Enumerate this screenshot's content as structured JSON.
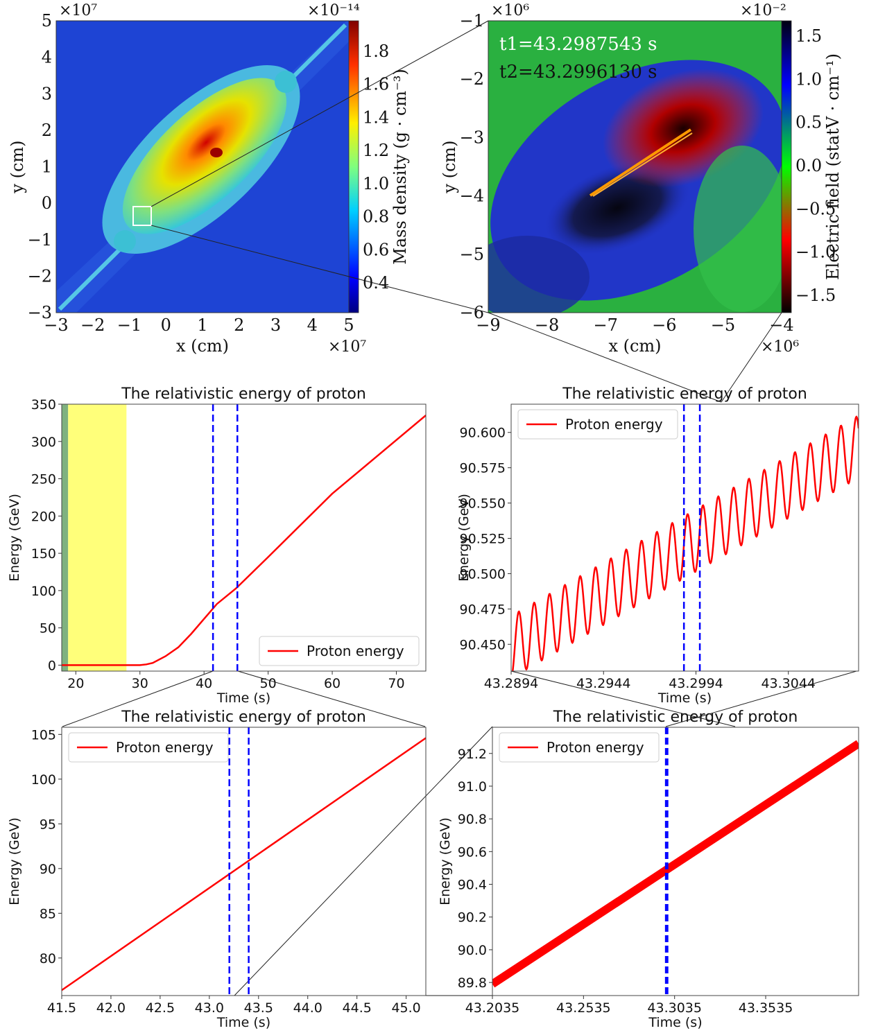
{
  "top_left": {
    "xlabel": "x  (cm)",
    "ylabel": "y  (cm)",
    "x_exp": "×10⁷",
    "y_exp": "×10⁷",
    "xticks": [
      "−3",
      "−2",
      "−1",
      "0",
      "1",
      "2",
      "3",
      "4",
      "5"
    ],
    "yticks": [
      "5",
      "4",
      "3",
      "2",
      "1",
      "0",
      "−1",
      "−2",
      "−3"
    ],
    "cbar_label": "Mass density (g · cm⁻³)",
    "cbar_exp": "×10⁻¹⁴",
    "cbar_ticks": [
      "1.8",
      "1.6",
      "1.4",
      "1.2",
      "1.0",
      "0.8",
      "0.6",
      "0.4"
    ]
  },
  "top_right": {
    "xlabel": "x  (cm)",
    "ylabel": "y  (cm)",
    "x_exp": "×10⁶",
    "y_exp": "×10⁶",
    "xticks": [
      "−9",
      "−8",
      "−7",
      "−6",
      "−5",
      "−4"
    ],
    "yticks": [
      "−1",
      "−2",
      "−3",
      "−4",
      "−5",
      "−6"
    ],
    "cbar_label": "Electric field (statV · cm⁻¹)",
    "cbar_exp": "×10⁻²",
    "cbar_ticks": [
      "1.5",
      "1.0",
      "0.5",
      "0.0",
      "−0.5",
      "−1.0",
      "−1.5"
    ],
    "t1": "t1=43.2987543 s",
    "t2": "t2=43.2996130 s"
  },
  "chart_data": [
    {
      "type": "line",
      "title": "The relativistic energy of proton",
      "xlabel": "Time (s)",
      "ylabel": "Energy (GeV)",
      "xlim": [
        17.8,
        74.6
      ],
      "ylim": [
        -8,
        350
      ],
      "xticks": [
        20,
        30,
        40,
        50,
        60,
        70
      ],
      "yticks": [
        0,
        50,
        100,
        150,
        200,
        250,
        300,
        350
      ],
      "legend": "lower right",
      "series": [
        {
          "name": "Proton energy",
          "x": [
            17.8,
            30,
            31,
            32,
            34,
            36,
            38,
            40,
            42,
            45,
            50,
            60,
            74.6
          ],
          "y": [
            0,
            0,
            1,
            3,
            12,
            24,
            42,
            62,
            82,
            103,
            145,
            230,
            335
          ]
        }
      ],
      "vlines": [
        41.4,
        45.2
      ],
      "shaded": [
        {
          "from": 17.8,
          "to": 18.8,
          "color": "#7fb17f"
        },
        {
          "from": 18.8,
          "to": 27.9,
          "color": "#ffff7a"
        }
      ]
    },
    {
      "type": "line",
      "title": "The relativistic energy of proton",
      "xlabel": "Time (s)",
      "ylabel": "Energy (GeV)",
      "xlim": [
        43.2894,
        43.3082
      ],
      "ylim": [
        90.431,
        90.62
      ],
      "xticks": [
        "43.2894",
        "43.2944",
        "43.2994",
        "43.3044"
      ],
      "yticks": [
        "90.450",
        "90.475",
        "90.500",
        "90.525",
        "90.550",
        "90.575",
        "90.600"
      ],
      "legend": "upper left",
      "series": [
        {
          "name": "Proton energy",
          "start": [
            43.2894,
            90.448
          ],
          "end": [
            43.3082,
            90.59
          ],
          "oscillation_amplitude": 0.022,
          "oscillation_period": 0.00083
        }
      ],
      "vlines": [
        43.29875,
        43.29961
      ]
    },
    {
      "type": "line",
      "title": "The relativistic energy of proton",
      "xlabel": "Time (s)",
      "ylabel": "Energy (GeV)",
      "xlim": [
        41.5,
        45.2
      ],
      "ylim": [
        75.8,
        105.8
      ],
      "xticks": [
        "41.5",
        "42.0",
        "42.5",
        "43.0",
        "43.5",
        "44.0",
        "44.5",
        "45.0"
      ],
      "yticks": [
        80,
        85,
        90,
        95,
        100,
        105
      ],
      "legend": "upper left",
      "series": [
        {
          "name": "Proton energy",
          "x": [
            41.5,
            45.2
          ],
          "y": [
            76.4,
            104.6
          ]
        }
      ],
      "vlines": [
        43.2035,
        43.4
      ]
    },
    {
      "type": "line",
      "title": "The relativistic energy of proton",
      "xlabel": "Time (s)",
      "ylabel": "Energy (GeV)",
      "xlim": [
        43.2035,
        43.4045
      ],
      "ylim": [
        89.72,
        91.36
      ],
      "xticks": [
        "43.2035",
        "43.2535",
        "43.3035",
        "43.3535"
      ],
      "yticks": [
        "89.8",
        "90.0",
        "90.2",
        "90.4",
        "90.6",
        "90.8",
        "91.0",
        "91.2"
      ],
      "legend": "upper left",
      "series": [
        {
          "name": "Proton energy",
          "x": [
            43.2035,
            43.4045
          ],
          "y": [
            89.79,
            91.26
          ],
          "band_width": 0.05
        }
      ],
      "vlines": [
        43.2987,
        43.2996
      ]
    }
  ]
}
